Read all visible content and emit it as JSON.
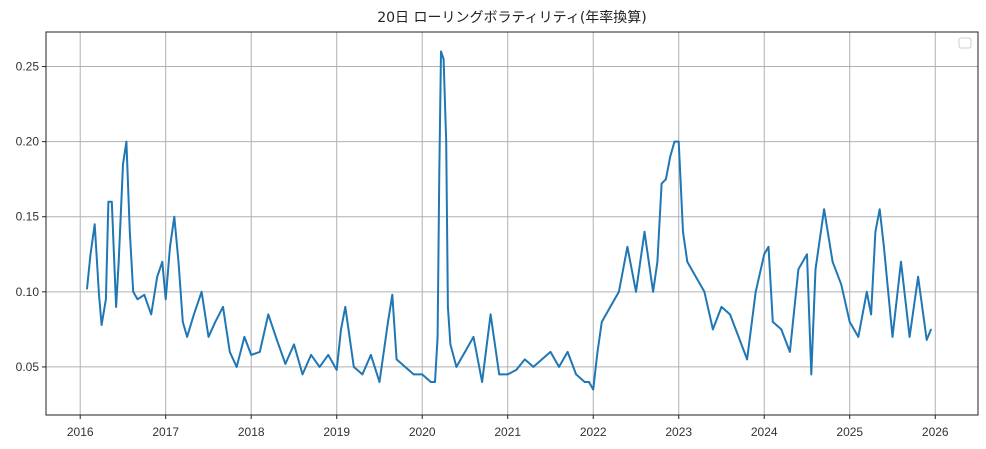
{
  "chart_data": {
    "type": "line",
    "title": "20日 ローリングボラティリティ(年率換算)",
    "xlabel": "",
    "ylabel": "",
    "grid": true,
    "legend": "top-right",
    "xlim": [
      2015.6,
      2026.5
    ],
    "ylim": [
      0.018,
      0.273
    ],
    "x_ticks": [
      "2016",
      "2017",
      "2018",
      "2019",
      "2020",
      "2021",
      "2022",
      "2023",
      "2024",
      "2025",
      "2026"
    ],
    "y_ticks": [
      "0.05",
      "0.10",
      "0.15",
      "0.20",
      "0.25"
    ],
    "series": [
      {
        "color": "#1f77b4",
        "x": [
          2016.08,
          2016.12,
          2016.17,
          2016.22,
          2016.25,
          2016.3,
          2016.33,
          2016.37,
          2016.42,
          2016.45,
          2016.5,
          2016.54,
          2016.58,
          2016.62,
          2016.67,
          2016.75,
          2016.83,
          2016.9,
          2016.96,
          2017.0,
          2017.05,
          2017.1,
          2017.15,
          2017.2,
          2017.25,
          2017.33,
          2017.42,
          2017.5,
          2017.58,
          2017.67,
          2017.75,
          2017.83,
          2017.92,
          2018.0,
          2018.1,
          2018.2,
          2018.3,
          2018.4,
          2018.5,
          2018.6,
          2018.7,
          2018.8,
          2018.9,
          2019.0,
          2019.05,
          2019.1,
          2019.2,
          2019.3,
          2019.4,
          2019.5,
          2019.6,
          2019.65,
          2019.7,
          2019.8,
          2019.9,
          2020.0,
          2020.1,
          2020.15,
          2020.18,
          2020.2,
          2020.22,
          2020.25,
          2020.28,
          2020.3,
          2020.33,
          2020.4,
          2020.5,
          2020.6,
          2020.7,
          2020.8,
          2020.9,
          2021.0,
          2021.1,
          2021.2,
          2021.3,
          2021.4,
          2021.5,
          2021.6,
          2021.7,
          2021.8,
          2021.9,
          2021.95,
          2022.0,
          2022.05,
          2022.1,
          2022.2,
          2022.3,
          2022.4,
          2022.5,
          2022.6,
          2022.7,
          2022.75,
          2022.8,
          2022.85,
          2022.9,
          2022.95,
          2023.0,
          2023.05,
          2023.1,
          2023.2,
          2023.3,
          2023.4,
          2023.5,
          2023.6,
          2023.7,
          2023.8,
          2023.9,
          2024.0,
          2024.05,
          2024.1,
          2024.2,
          2024.3,
          2024.4,
          2024.5,
          2024.55,
          2024.6,
          2024.7,
          2024.8,
          2024.9,
          2025.0,
          2025.1,
          2025.2,
          2025.25,
          2025.3,
          2025.35,
          2025.4,
          2025.5,
          2025.6,
          2025.7,
          2025.8,
          2025.9,
          2025.95
        ],
        "y": [
          0.102,
          0.125,
          0.145,
          0.098,
          0.078,
          0.095,
          0.16,
          0.16,
          0.09,
          0.12,
          0.185,
          0.2,
          0.14,
          0.1,
          0.095,
          0.098,
          0.085,
          0.11,
          0.12,
          0.095,
          0.13,
          0.15,
          0.12,
          0.08,
          0.07,
          0.085,
          0.1,
          0.07,
          0.08,
          0.09,
          0.06,
          0.05,
          0.07,
          0.058,
          0.06,
          0.085,
          0.068,
          0.052,
          0.065,
          0.045,
          0.058,
          0.05,
          0.058,
          0.048,
          0.075,
          0.09,
          0.05,
          0.045,
          0.058,
          0.04,
          0.08,
          0.098,
          0.055,
          0.05,
          0.045,
          0.045,
          0.04,
          0.04,
          0.07,
          0.18,
          0.26,
          0.255,
          0.2,
          0.09,
          0.065,
          0.05,
          0.06,
          0.07,
          0.04,
          0.085,
          0.045,
          0.045,
          0.048,
          0.055,
          0.05,
          0.055,
          0.06,
          0.05,
          0.06,
          0.045,
          0.04,
          0.04,
          0.035,
          0.06,
          0.08,
          0.09,
          0.1,
          0.13,
          0.1,
          0.14,
          0.1,
          0.12,
          0.172,
          0.175,
          0.19,
          0.2,
          0.2,
          0.14,
          0.12,
          0.11,
          0.1,
          0.075,
          0.09,
          0.085,
          0.07,
          0.055,
          0.1,
          0.125,
          0.13,
          0.08,
          0.075,
          0.06,
          0.115,
          0.125,
          0.045,
          0.115,
          0.155,
          0.12,
          0.105,
          0.08,
          0.07,
          0.1,
          0.085,
          0.14,
          0.155,
          0.13,
          0.07,
          0.12,
          0.07,
          0.11,
          0.068,
          0.075
        ]
      }
    ]
  }
}
